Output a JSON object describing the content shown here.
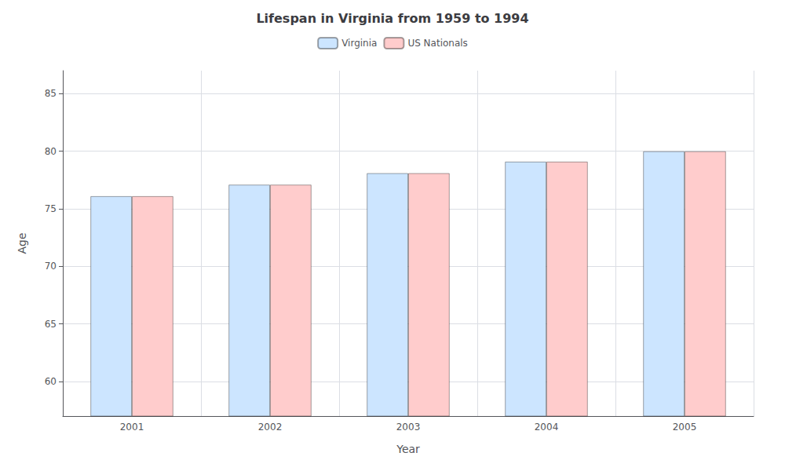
{
  "chart_data": {
    "type": "bar",
    "title": "Lifespan in Virginia from 1959 to 1994",
    "xlabel": "Year",
    "ylabel": "Age",
    "categories": [
      "2001",
      "2002",
      "2003",
      "2004",
      "2005"
    ],
    "series": [
      {
        "name": "Virginia",
        "color": "#cce5ff",
        "values": [
          76.1,
          77.1,
          78.1,
          79.1,
          80.0
        ]
      },
      {
        "name": "US Nationals",
        "color": "#ffcccc",
        "values": [
          76.1,
          77.1,
          78.1,
          79.1,
          80.0
        ]
      }
    ],
    "ylim": [
      57,
      87
    ],
    "yticks": [
      60,
      65,
      70,
      75,
      80,
      85
    ],
    "grid": true,
    "legend": "top"
  }
}
